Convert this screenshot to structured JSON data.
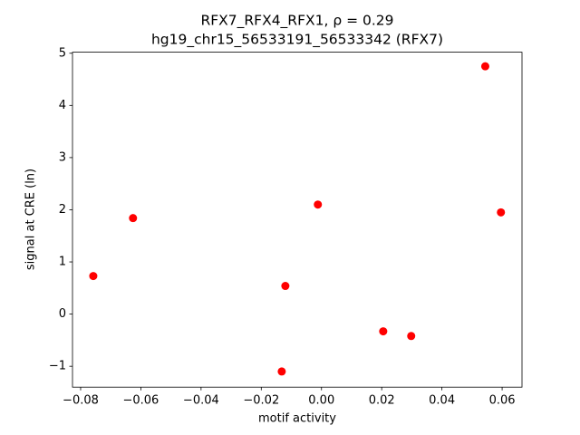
{
  "chart_data": {
    "type": "scatter",
    "title": "RFX7_RFX4_RFX1, ρ = 0.29",
    "subtitle": "hg19_chr15_56533191_56533342 (RFX7)",
    "x_label": "motif activity",
    "y_label": "signal at CRE (ln)",
    "color": "#ff0000",
    "x": [
      -0.0758,
      -0.0626,
      -0.012,
      -0.0132,
      -0.0012,
      0.0205,
      0.0298,
      0.0544,
      0.0596
    ],
    "values": [
      0.73,
      1.84,
      0.54,
      -1.1,
      2.1,
      -0.33,
      -0.42,
      4.75,
      1.95
    ],
    "xlim": [
      -0.0827,
      0.0666
    ],
    "ylim": [
      -1.4,
      5.02
    ],
    "xticks": [
      {
        "value": -0.08,
        "label": "−0.08"
      },
      {
        "value": -0.06,
        "label": "−0.06"
      },
      {
        "value": -0.04,
        "label": "−0.04"
      },
      {
        "value": -0.02,
        "label": "−0.02"
      },
      {
        "value": 0,
        "label": "0.00"
      },
      {
        "value": 0.02,
        "label": "0.02"
      },
      {
        "value": 0.04,
        "label": "0.04"
      },
      {
        "value": 0.06,
        "label": "0.06"
      }
    ],
    "yticks": [
      {
        "value": -1,
        "label": "−1"
      },
      0,
      1,
      2,
      3,
      4,
      5
    ],
    "grid": false
  }
}
